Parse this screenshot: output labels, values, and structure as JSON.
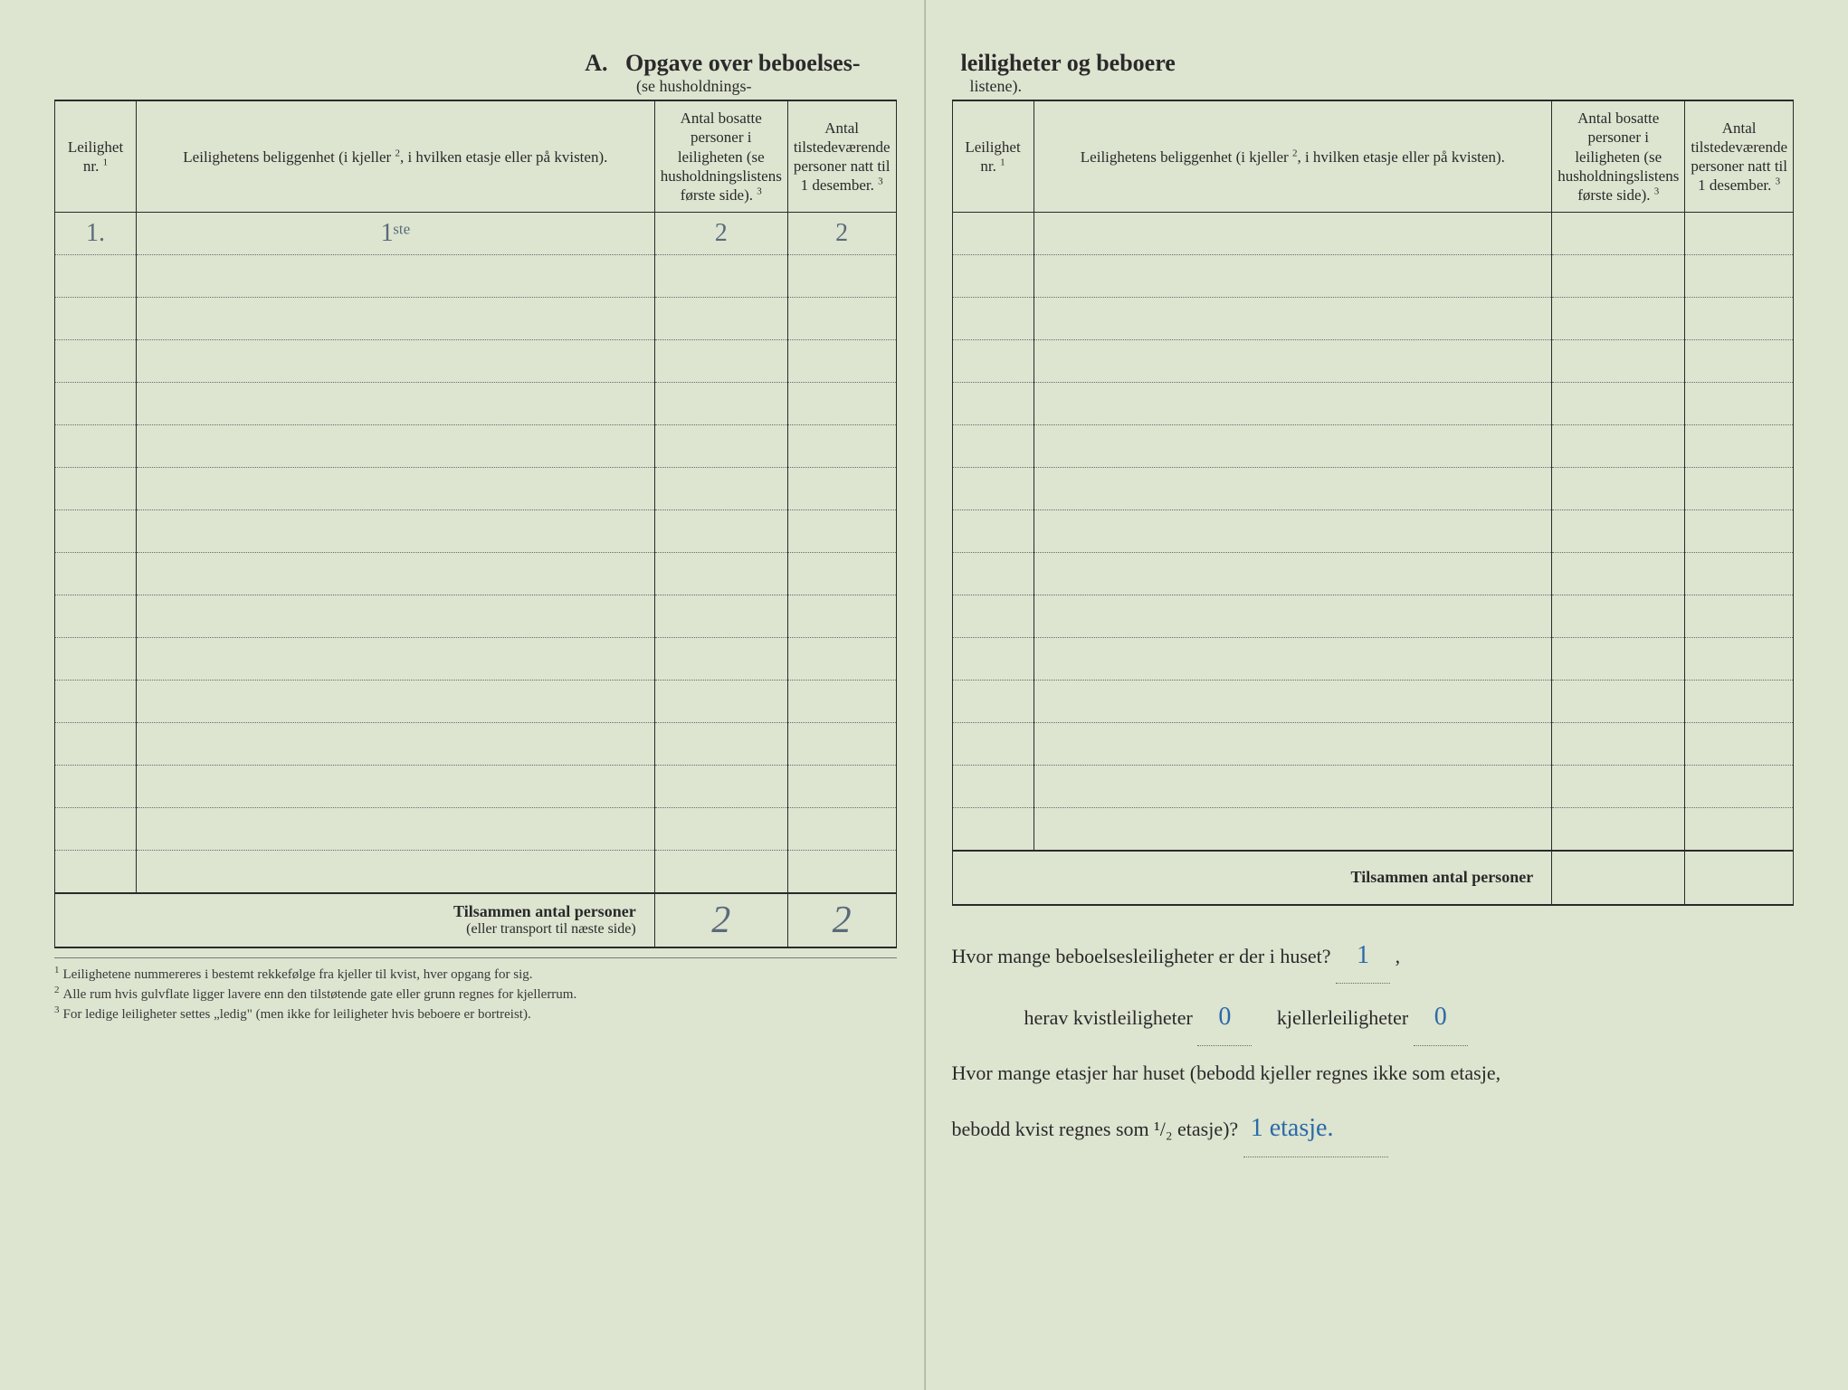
{
  "document": {
    "background_color": "#dde4d0",
    "ink_color": "#2a2a2a",
    "handwriting_color_pencil": "#5a6a7a",
    "handwriting_color_ink": "#2a6aa8"
  },
  "header": {
    "section_letter": "A.",
    "title_left": "Opgave over beboelses-",
    "subtitle_left": "(se husholdnings-",
    "title_right": "leiligheter og beboere",
    "subtitle_right": "listene)."
  },
  "columns": {
    "nr": {
      "label": "Leilighet nr.",
      "footnote_mark": "1"
    },
    "location": {
      "label": "Leilighetens beliggenhet (i kjeller",
      "footnote_mark": "2",
      "label_tail": ", i hvilken etasje eller på kvisten)."
    },
    "persons_registered": {
      "label": "Antal bosatte personer i leiligheten (se husholdningslistens første side).",
      "footnote_mark": "3"
    },
    "persons_present": {
      "label": "Antal tilstedeværende personer natt til 1 desember.",
      "footnote_mark": "3"
    }
  },
  "left_page": {
    "rows": [
      {
        "nr": "1.",
        "location": "1ˢᵗᵉ",
        "registered": "2",
        "present": "2"
      },
      {
        "nr": "",
        "location": "",
        "registered": "",
        "present": ""
      },
      {
        "nr": "",
        "location": "",
        "registered": "",
        "present": ""
      },
      {
        "nr": "",
        "location": "",
        "registered": "",
        "present": ""
      },
      {
        "nr": "",
        "location": "",
        "registered": "",
        "present": ""
      },
      {
        "nr": "",
        "location": "",
        "registered": "",
        "present": ""
      },
      {
        "nr": "",
        "location": "",
        "registered": "",
        "present": ""
      },
      {
        "nr": "",
        "location": "",
        "registered": "",
        "present": ""
      },
      {
        "nr": "",
        "location": "",
        "registered": "",
        "present": ""
      },
      {
        "nr": "",
        "location": "",
        "registered": "",
        "present": ""
      },
      {
        "nr": "",
        "location": "",
        "registered": "",
        "present": ""
      },
      {
        "nr": "",
        "location": "",
        "registered": "",
        "present": ""
      },
      {
        "nr": "",
        "location": "",
        "registered": "",
        "present": ""
      },
      {
        "nr": "",
        "location": "",
        "registered": "",
        "present": ""
      },
      {
        "nr": "",
        "location": "",
        "registered": "",
        "present": ""
      },
      {
        "nr": "",
        "location": "",
        "registered": "",
        "present": ""
      }
    ],
    "total": {
      "label": "Tilsammen antal personer",
      "sublabel": "(eller transport til næste side)",
      "registered": "2",
      "present": "2"
    }
  },
  "right_page": {
    "rows": [
      {
        "nr": "",
        "location": "",
        "registered": "",
        "present": ""
      },
      {
        "nr": "",
        "location": "",
        "registered": "",
        "present": ""
      },
      {
        "nr": "",
        "location": "",
        "registered": "",
        "present": ""
      },
      {
        "nr": "",
        "location": "",
        "registered": "",
        "present": ""
      },
      {
        "nr": "",
        "location": "",
        "registered": "",
        "present": ""
      },
      {
        "nr": "",
        "location": "",
        "registered": "",
        "present": ""
      },
      {
        "nr": "",
        "location": "",
        "registered": "",
        "present": ""
      },
      {
        "nr": "",
        "location": "",
        "registered": "",
        "present": ""
      },
      {
        "nr": "",
        "location": "",
        "registered": "",
        "present": ""
      },
      {
        "nr": "",
        "location": "",
        "registered": "",
        "present": ""
      },
      {
        "nr": "",
        "location": "",
        "registered": "",
        "present": ""
      },
      {
        "nr": "",
        "location": "",
        "registered": "",
        "present": ""
      },
      {
        "nr": "",
        "location": "",
        "registered": "",
        "present": ""
      },
      {
        "nr": "",
        "location": "",
        "registered": "",
        "present": ""
      },
      {
        "nr": "",
        "location": "",
        "registered": "",
        "present": ""
      }
    ],
    "total": {
      "label": "Tilsammen antal personer",
      "registered": "",
      "present": ""
    }
  },
  "questions": {
    "q1": {
      "text": "Hvor mange beboelsesleiligheter er der i huset?",
      "answer": "1",
      "tail": ","
    },
    "q2a": {
      "label": "herav kvistleiligheter",
      "answer": "0"
    },
    "q2b": {
      "label": "kjellerleiligheter",
      "answer": "0"
    },
    "q3": {
      "text_a": "Hvor mange etasjer har huset (bebodd kjeller regnes ikke som etasje,",
      "text_b": "bebodd kvist regnes som ¹/₂ etasje)?",
      "answer": "1 etasje."
    }
  },
  "footnotes": {
    "f1": "Leilighetene nummereres i bestemt rekkefølge fra kjeller til kvist, hver opgang for sig.",
    "f2": "Alle rum hvis gulvflate ligger lavere enn den tilstøtende gate eller grunn regnes for kjellerrum.",
    "f3": "For ledige leiligheter settes „ledig\" (men ikke for leiligheter hvis beboere er bortreist)."
  }
}
